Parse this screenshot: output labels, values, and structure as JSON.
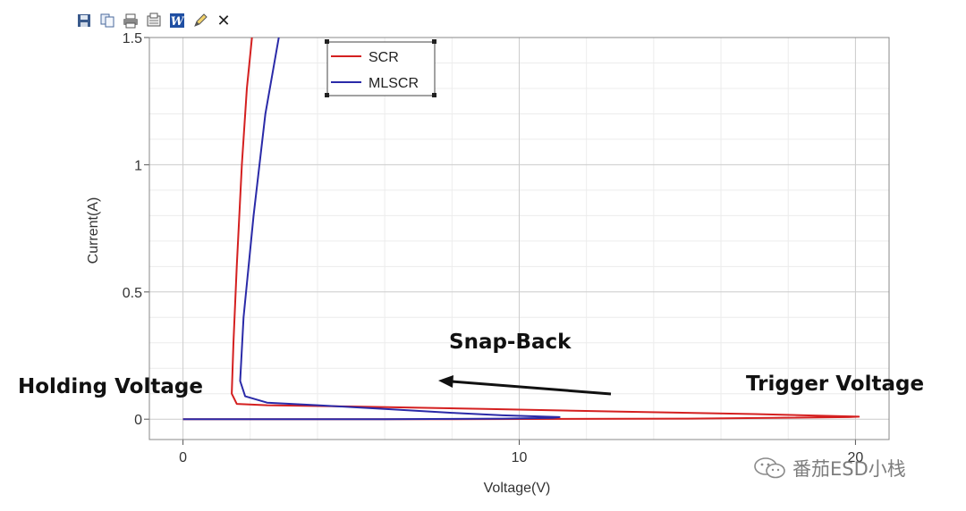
{
  "toolbar": {
    "icons": [
      "save-icon",
      "copy-icon",
      "print-icon",
      "export-icon",
      "word-icon",
      "edit-icon",
      "close-icon"
    ],
    "close_glyph": "✕",
    "word_glyph": "W"
  },
  "chart_data": {
    "type": "line",
    "xlabel": "Voltage(V)",
    "ylabel": "Current(A)",
    "xlim": [
      -1,
      21
    ],
    "ylim": [
      -0.08,
      1.5
    ],
    "x_ticks": [
      0,
      10,
      20
    ],
    "x_tick_labels": [
      "0",
      "10",
      "20"
    ],
    "y_ticks": [
      0,
      0.5,
      1,
      1.5
    ],
    "y_tick_labels": [
      "0",
      "0.5",
      "1",
      "1.5"
    ],
    "grid": true,
    "legend_position": "top-center",
    "series": [
      {
        "name": "SCR",
        "color": "#d42020",
        "points": [
          [
            0,
            0
          ],
          [
            8,
            0
          ],
          [
            15,
            0.002
          ],
          [
            19.8,
            0.008
          ],
          [
            20.1,
            0.01
          ],
          [
            17,
            0.02
          ],
          [
            13,
            0.03
          ],
          [
            9,
            0.04
          ],
          [
            5,
            0.05
          ],
          [
            2.5,
            0.055
          ],
          [
            1.6,
            0.06
          ],
          [
            1.45,
            0.1
          ],
          [
            1.5,
            0.3
          ],
          [
            1.6,
            0.6
          ],
          [
            1.75,
            1.0
          ],
          [
            1.9,
            1.3
          ],
          [
            2.05,
            1.5
          ]
        ]
      },
      {
        "name": "MLSCR",
        "color": "#2a2aa8",
        "points": [
          [
            0,
            0
          ],
          [
            6,
            0
          ],
          [
            9.5,
            0.002
          ],
          [
            11,
            0.005
          ],
          [
            11.2,
            0.008
          ],
          [
            9.5,
            0.015
          ],
          [
            8,
            0.025
          ],
          [
            6,
            0.04
          ],
          [
            4,
            0.055
          ],
          [
            2.5,
            0.065
          ],
          [
            1.85,
            0.09
          ],
          [
            1.7,
            0.15
          ],
          [
            1.8,
            0.4
          ],
          [
            2.1,
            0.8
          ],
          [
            2.45,
            1.2
          ],
          [
            2.85,
            1.5
          ]
        ]
      }
    ],
    "annotations": [
      {
        "text": "Snap-Back"
      },
      {
        "text": "Holding Voltage"
      },
      {
        "text": "Trigger Voltage"
      }
    ]
  },
  "watermark": {
    "text": "番茄ESD小栈",
    "icon": "wechat-icon"
  }
}
